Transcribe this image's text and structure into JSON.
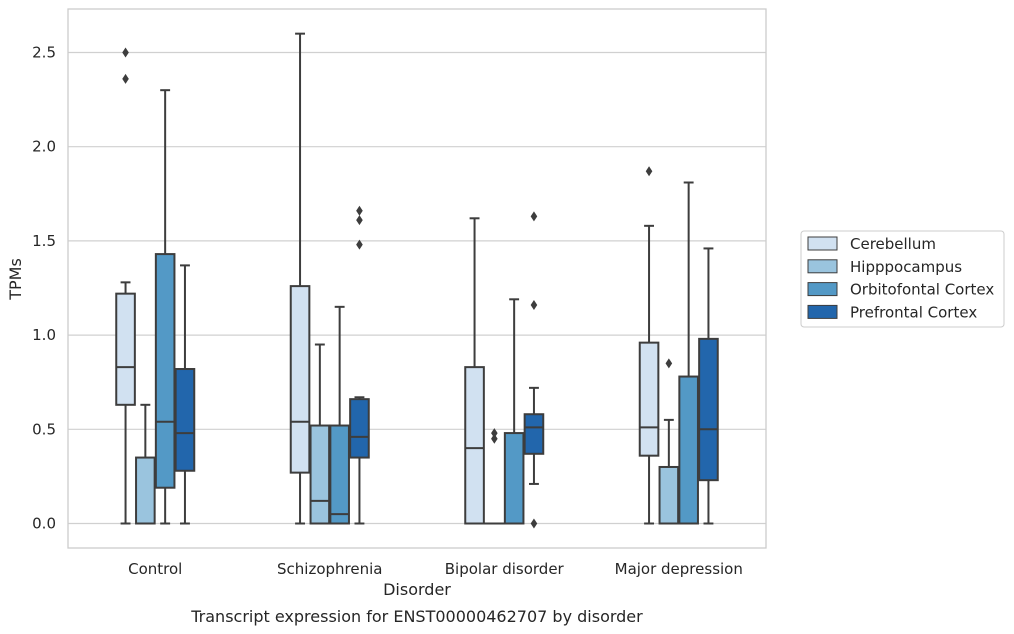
{
  "chart_data": {
    "type": "box",
    "title": "",
    "caption": "Transcript expression for ENST00000462707 by disorder",
    "xlabel": "Disorder",
    "ylabel": "TPMs",
    "ylim": [
      -0.125,
      2.73
    ],
    "yticks": [
      0.0,
      0.5,
      1.0,
      1.5,
      2.0,
      2.5
    ],
    "ytick_labels": [
      "0.0",
      "0.5",
      "1.0",
      "1.5",
      "2.0",
      "2.5"
    ],
    "categories": [
      "Control",
      "Schizophrenia",
      "Bipolar disorder",
      "Major depression"
    ],
    "grid": "horizontal",
    "legend_position": "right",
    "series": [
      {
        "name": "Cerebellum",
        "color": "#d1e1f1",
        "boxes": [
          {
            "whislo": 0.0,
            "q1": 0.63,
            "med": 0.83,
            "q3": 1.22,
            "whishi": 1.28,
            "fliers": [
              2.36,
              2.5
            ]
          },
          {
            "whislo": 0.0,
            "q1": 0.27,
            "med": 0.54,
            "q3": 1.26,
            "whishi": 2.6,
            "fliers": []
          },
          {
            "whislo": 0.0,
            "q1": 0.0,
            "med": 0.4,
            "q3": 0.83,
            "whishi": 1.62,
            "fliers": []
          },
          {
            "whislo": 0.0,
            "q1": 0.36,
            "med": 0.51,
            "q3": 0.96,
            "whishi": 1.58,
            "fliers": [
              1.87
            ]
          }
        ]
      },
      {
        "name": "Hipppocampus",
        "color": "#9ac4de",
        "boxes": [
          {
            "whislo": 0.0,
            "q1": 0.0,
            "med": 0.0,
            "q3": 0.35,
            "whishi": 0.63,
            "fliers": []
          },
          {
            "whislo": 0.0,
            "q1": 0.0,
            "med": 0.12,
            "q3": 0.52,
            "whishi": 0.95,
            "fliers": []
          },
          {
            "whislo": 0.0,
            "q1": 0.0,
            "med": 0.0,
            "q3": 0.0,
            "whishi": 0.0,
            "fliers": [
              0.45,
              0.48
            ]
          },
          {
            "whislo": 0.0,
            "q1": 0.0,
            "med": 0.0,
            "q3": 0.3,
            "whishi": 0.55,
            "fliers": [
              0.85
            ]
          }
        ]
      },
      {
        "name": "Orbitofontal Cortex",
        "color": "#5399c6",
        "boxes": [
          {
            "whislo": 0.0,
            "q1": 0.19,
            "med": 0.54,
            "q3": 1.43,
            "whishi": 2.3,
            "fliers": []
          },
          {
            "whislo": 0.0,
            "q1": 0.0,
            "med": 0.05,
            "q3": 0.52,
            "whishi": 1.15,
            "fliers": []
          },
          {
            "whislo": 0.0,
            "q1": 0.0,
            "med": 0.0,
            "q3": 0.48,
            "whishi": 1.19,
            "fliers": []
          },
          {
            "whislo": 0.0,
            "q1": 0.0,
            "med": 0.0,
            "q3": 0.78,
            "whishi": 1.81,
            "fliers": []
          }
        ]
      },
      {
        "name": "Prefrontal Cortex",
        "color": "#2266ac",
        "boxes": [
          {
            "whislo": 0.0,
            "q1": 0.28,
            "med": 0.48,
            "q3": 0.82,
            "whishi": 1.37,
            "fliers": []
          },
          {
            "whislo": 0.0,
            "q1": 0.35,
            "med": 0.46,
            "q3": 0.66,
            "whishi": 0.67,
            "fliers": [
              1.48,
              1.61,
              1.66
            ]
          },
          {
            "whislo": 0.21,
            "q1": 0.37,
            "med": 0.51,
            "q3": 0.58,
            "whishi": 0.72,
            "fliers": [
              0.0,
              1.16,
              1.63
            ]
          },
          {
            "whislo": 0.0,
            "q1": 0.23,
            "med": 0.5,
            "q3": 0.98,
            "whishi": 1.46,
            "fliers": []
          }
        ]
      }
    ]
  }
}
